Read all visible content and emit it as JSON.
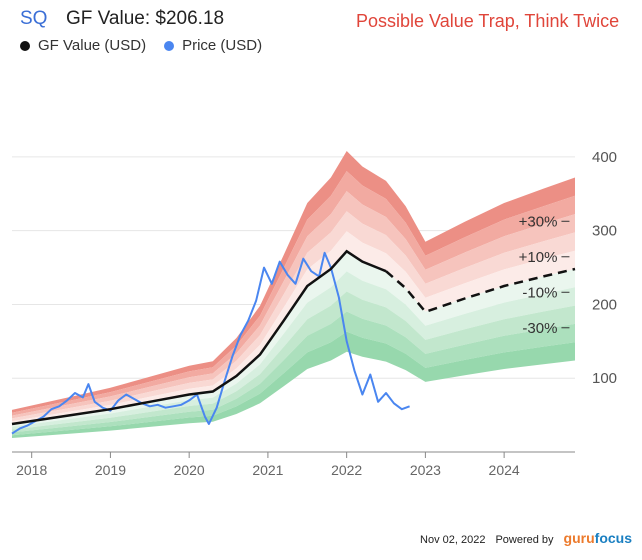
{
  "header": {
    "ticker": "SQ",
    "gf_value_text": "GF Value: $206.18",
    "warning": "Possible Value Trap, Think Twice"
  },
  "legend": [
    {
      "label": "GF Value (USD)",
      "color": "#111111"
    },
    {
      "label": "Price (USD)",
      "color": "#4a86f0"
    }
  ],
  "footer": {
    "date": "Nov 02, 2022",
    "powered_by": "Powered by",
    "brand_a": "guru",
    "brand_b": "focus"
  },
  "chart_data": {
    "type": "line",
    "x_ticks": [
      "2018",
      "2019",
      "2020",
      "2021",
      "2022",
      "2023",
      "2024"
    ],
    "x_tick_values": [
      2018,
      2019,
      2020,
      2021,
      2022,
      2023,
      2024
    ],
    "xlim": [
      2017.75,
      2024.9
    ],
    "y_ticks": [
      100,
      200,
      300,
      400
    ],
    "ylim": [
      0,
      450
    ],
    "grid": true,
    "band_labels": [
      "+30%",
      "+10%",
      "-10%",
      "-30%"
    ],
    "gf_value": {
      "x": [
        2017.75,
        2018.5,
        2019.0,
        2019.5,
        2020.0,
        2020.3,
        2020.6,
        2020.9,
        2021.2,
        2021.5,
        2021.8,
        2022.0,
        2022.2,
        2022.5,
        2022.75,
        2023.0,
        2023.5,
        2024.0,
        2024.5,
        2024.9
      ],
      "y": [
        38,
        50,
        58,
        68,
        78,
        82,
        103,
        132,
        178,
        225,
        248,
        272,
        258,
        245,
        222,
        190,
        208,
        225,
        238,
        248
      ],
      "projected_from": 2022.5
    },
    "band_multipliers": {
      "upper": [
        1.5,
        1.4,
        1.3,
        1.2,
        1.1,
        1.0
      ],
      "lower": [
        1.0,
        0.9,
        0.8,
        0.7,
        0.6,
        0.5
      ]
    },
    "price": {
      "x": [
        2017.75,
        2017.85,
        2017.95,
        2018.05,
        2018.15,
        2018.25,
        2018.35,
        2018.45,
        2018.55,
        2018.65,
        2018.72,
        2018.8,
        2018.9,
        2019.0,
        2019.1,
        2019.2,
        2019.3,
        2019.4,
        2019.5,
        2019.6,
        2019.7,
        2019.8,
        2019.9,
        2020.0,
        2020.1,
        2020.2,
        2020.25,
        2020.35,
        2020.45,
        2020.55,
        2020.65,
        2020.75,
        2020.85,
        2020.95,
        2021.05,
        2021.15,
        2021.25,
        2021.35,
        2021.45,
        2021.55,
        2021.65,
        2021.72,
        2021.8,
        2021.9,
        2022.0,
        2022.1,
        2022.2,
        2022.3,
        2022.4,
        2022.5,
        2022.6,
        2022.7,
        2022.8
      ],
      "y": [
        25,
        32,
        36,
        42,
        48,
        58,
        62,
        70,
        80,
        74,
        92,
        68,
        60,
        56,
        70,
        78,
        72,
        66,
        62,
        64,
        60,
        62,
        64,
        70,
        78,
        48,
        38,
        60,
        96,
        130,
        158,
        178,
        205,
        250,
        228,
        258,
        240,
        228,
        262,
        245,
        238,
        270,
        250,
        210,
        150,
        110,
        78,
        105,
        68,
        80,
        66,
        58,
        62
      ]
    }
  }
}
